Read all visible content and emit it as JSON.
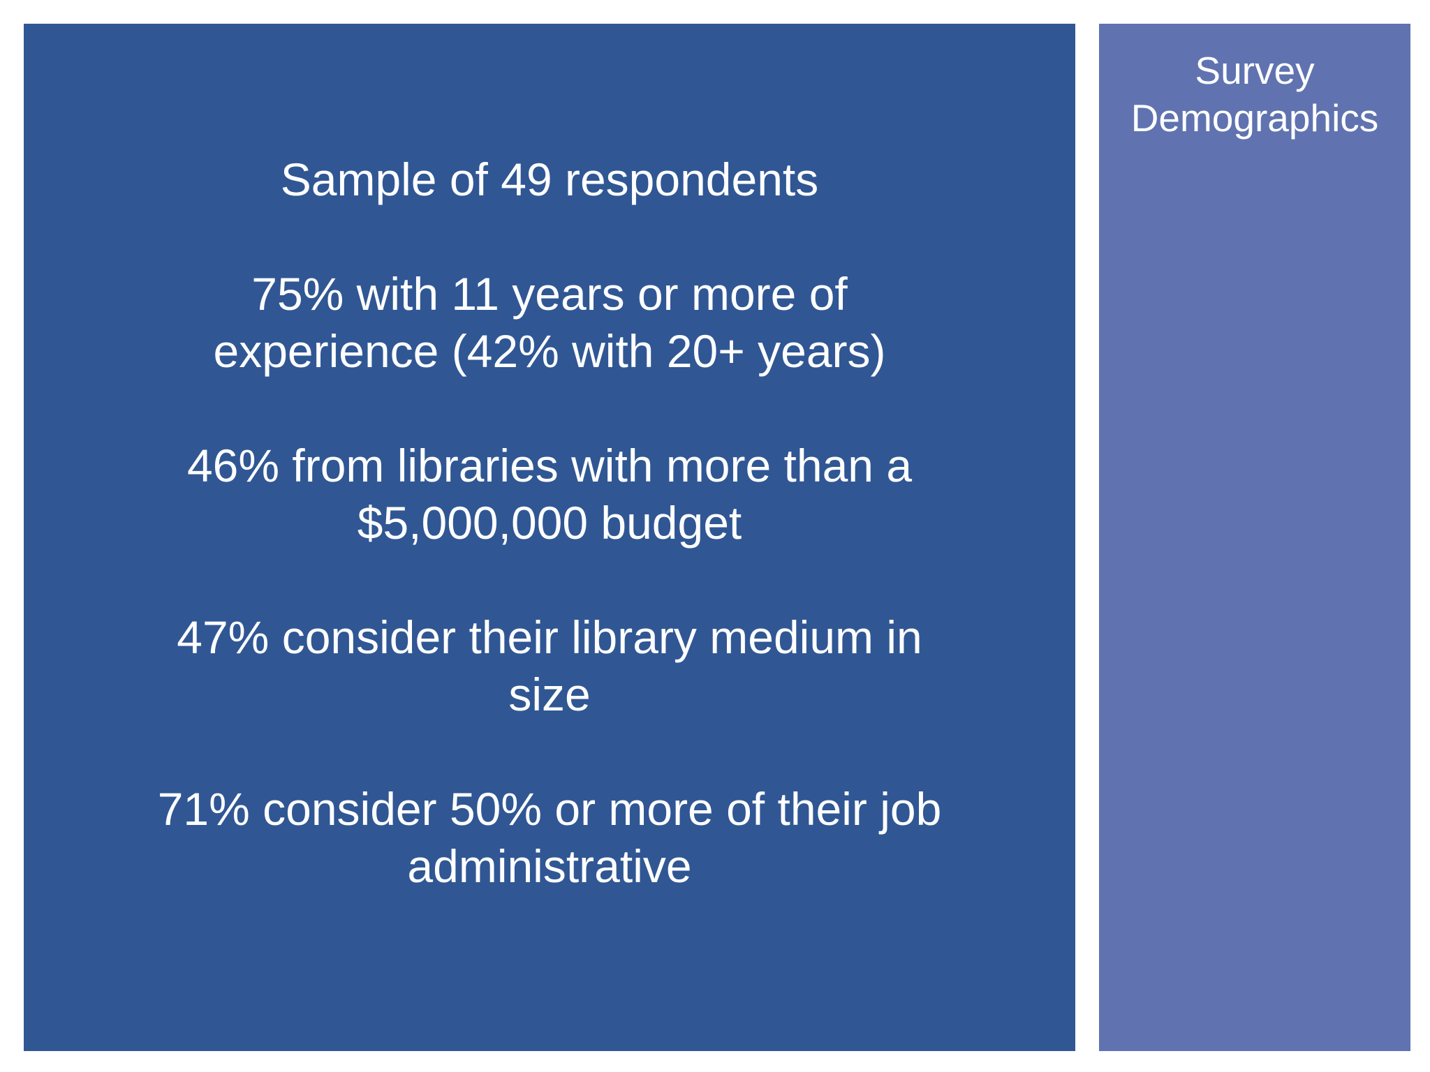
{
  "sidebar": {
    "title_line1": "Survey",
    "title_line2": "Demographics"
  },
  "stats": [
    {
      "line1": "Sample of 49 respondents"
    },
    {
      "line1": "75% with 11 years or more of",
      "line2": "experience (42% with 20+ years)"
    },
    {
      "line1": "46% from libraries with more than a",
      "line2": "$5,000,000 budget"
    },
    {
      "line1": "47% consider their library medium in",
      "line2": "size"
    },
    {
      "line1": "71% consider 50% or more of their job",
      "line2": "administrative"
    }
  ],
  "colors": {
    "main_panel": "#305794",
    "side_panel": "#6073b0",
    "text": "#ffffff"
  }
}
